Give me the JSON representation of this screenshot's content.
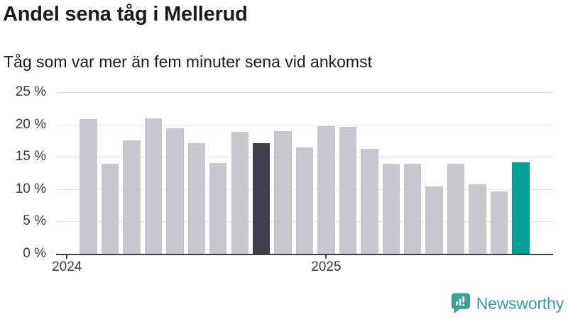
{
  "header": {
    "title": "Andel sena tåg i Mellerud",
    "subtitle": "Tåg som var mer än fem minuter sena vid ankomst"
  },
  "chart_data": {
    "type": "bar",
    "title": "Andel sena tåg i Mellerud",
    "subtitle": "Tåg som var mer än fem minuter sena vid ankomst",
    "unit": "%",
    "values": [
      20.8,
      13.9,
      17.6,
      20.9,
      19.4,
      17.1,
      14.0,
      18.9,
      17.1,
      19.0,
      16.5,
      19.7,
      19.6,
      16.2,
      13.9,
      13.9,
      10.4,
      13.9,
      10.7,
      9.7,
      14.2
    ],
    "ylim": [
      0,
      25
    ],
    "y_tick_labels": [
      "25 %",
      "20 %",
      "15 %",
      "10 %",
      "5 %",
      "0 %"
    ],
    "x_ticks": [
      {
        "label": "2024",
        "slot": 0
      },
      {
        "label": "2025",
        "slot": 12
      }
    ],
    "total_slots": 23,
    "bar_start_slot": 1,
    "highlight_dark_index": 8,
    "highlight_teal_index": 20,
    "grid": true,
    "legend": "none",
    "colors": {
      "bar_default": "#c8c7d0",
      "bar_dark": "#3f3f4c",
      "bar_teal": "#00a096",
      "gridline": "#e4e4e4",
      "axis_line": "#3e3e43",
      "axis_text": "#3c3c3c"
    }
  },
  "footer": {
    "brand": "Newsworthy",
    "brand_color": "#3f9e94"
  }
}
